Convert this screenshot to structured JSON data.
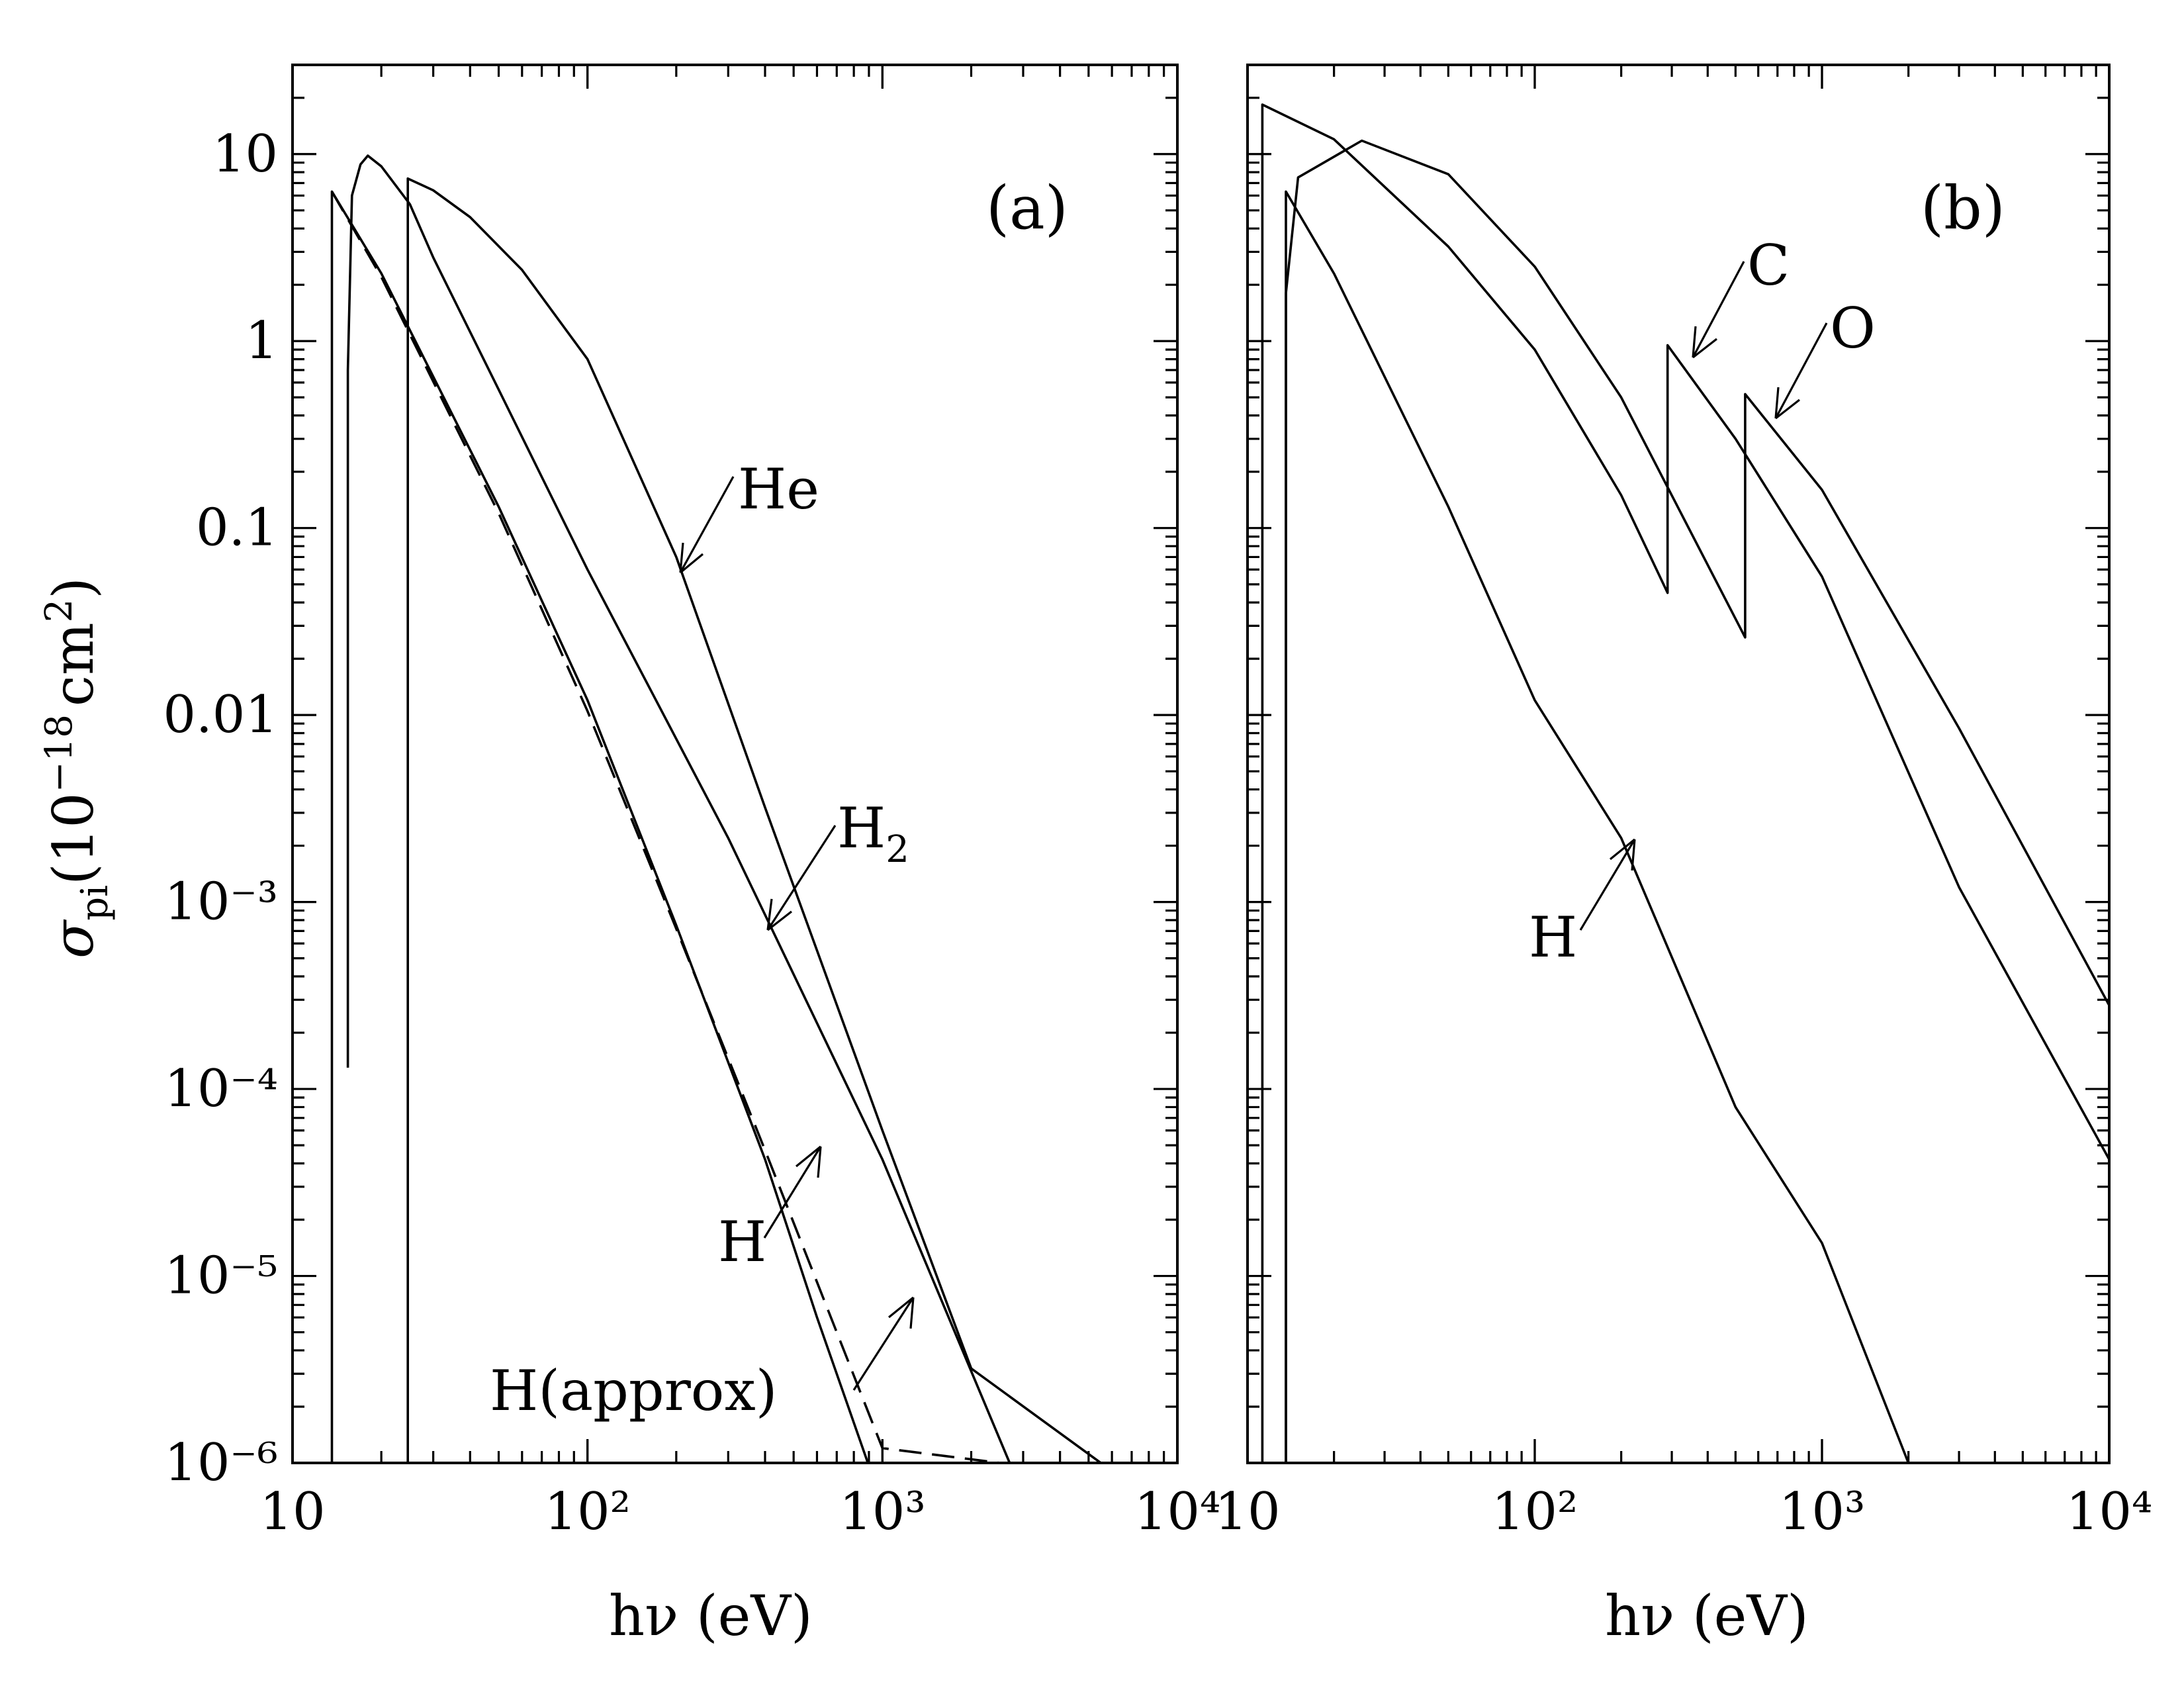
{
  "chart_data": [
    {
      "type": "line",
      "panel": "(a)",
      "xlabel": "hν (eV)",
      "ylabel": "σ_pi (10^-18 cm^2)",
      "xscale": "log",
      "yscale": "log",
      "xlim": [
        10,
        10000
      ],
      "ylim": [
        1e-06,
        30
      ],
      "xticklabels": [
        "10",
        "10²",
        "10³",
        "10⁴"
      ],
      "yticklabels": [
        "10",
        "1",
        "0.1",
        "0.01",
        "10⁻³",
        "10⁻⁴",
        "10⁻⁵",
        "10⁻⁶"
      ],
      "series": [
        {
          "name": "He",
          "style": "solid",
          "x": [
            24.6,
            24.6,
            30,
            40,
            60,
            100,
            200,
            400,
            1000,
            2000,
            5500
          ],
          "y": [
            1e-06,
            7.4,
            6.4,
            4.6,
            2.4,
            0.8,
            0.07,
            0.0032,
            6e-05,
            3.2e-06,
            1e-06
          ]
        },
        {
          "name": "H₂",
          "style": "solid",
          "x": [
            15.4,
            15.4,
            15.9,
            17,
            18,
            20,
            25,
            30,
            50,
            100,
            300,
            1000,
            2700
          ],
          "y": [
            0.00013,
            0.7,
            6.0,
            8.8,
            9.8,
            8.6,
            5.4,
            2.8,
            0.55,
            0.06,
            0.0022,
            4.2e-05,
            1e-06
          ]
        },
        {
          "name": "H",
          "style": "solid",
          "x": [
            13.6,
            13.6,
            20,
            50,
            100,
            200,
            400,
            600,
            1000,
            2300
          ],
          "y": [
            1e-06,
            6.3,
            2.3,
            0.13,
            0.012,
            0.00075,
            4.2e-05,
            6e-06,
            6e-07,
            1e-06
          ]
        },
        {
          "name": "H(approx)",
          "style": "dashed",
          "x": [
            13.6,
            20,
            50,
            100,
            200,
            400,
            1000,
            2500
          ],
          "y": [
            6.3,
            2.2,
            0.12,
            0.0105,
            0.00072,
            4.7e-05,
            1.2e-06,
            1e-06
          ]
        }
      ],
      "annotations": [
        "He",
        "H₂",
        "H",
        "H(approx)"
      ]
    },
    {
      "type": "line",
      "panel": "(b)",
      "xlabel": "hν (eV)",
      "xscale": "log",
      "yscale": "log",
      "xlim": [
        10,
        10000
      ],
      "ylim": [
        1e-06,
        30
      ],
      "xticklabels": [
        "10",
        "10²",
        "10³",
        "10⁴"
      ],
      "series": [
        {
          "name": "C",
          "style": "solid",
          "x": [
            11.26,
            11.26,
            20,
            50,
            100,
            200,
            290,
            290,
            500,
            1000,
            3000,
            10000
          ],
          "y": [
            1e-06,
            18.4,
            12,
            3.2,
            0.9,
            0.15,
            0.045,
            0.95,
            0.3,
            0.055,
            0.0012,
            4.2e-05
          ]
        },
        {
          "name": "O",
          "style": "solid",
          "x": [
            13.6,
            13.6,
            15,
            25,
            50,
            100,
            200,
            540,
            540,
            1000,
            3000,
            10000
          ],
          "y": [
            1e-06,
            1.8,
            7.5,
            11.8,
            7.8,
            2.5,
            0.5,
            0.026,
            0.52,
            0.16,
            0.0085,
            0.00028
          ]
        },
        {
          "name": "H",
          "style": "solid",
          "x": [
            13.6,
            13.6,
            20,
            50,
            100,
            200,
            500,
            1000,
            2000
          ],
          "y": [
            1e-06,
            6.3,
            2.3,
            0.13,
            0.012,
            0.0022,
            8e-05,
            1.5e-05,
            1e-06
          ]
        }
      ],
      "annotations": [
        "C",
        "O",
        "H"
      ]
    }
  ],
  "labels": {
    "panel_a": "(a)",
    "panel_b": "(b)",
    "x_title_a": "hν (eV)",
    "x_title_b": "hν (eV)",
    "y_title_main": "σ",
    "y_title_sub": "pi",
    "y_title_paren": "(10",
    "y_title_exp": "−18",
    "y_title_unit": "cm",
    "y_title_unit_exp": "2",
    "y_title_close": ")",
    "ann_he": "He",
    "ann_h2": "H",
    "ann_h2_sub": "2",
    "ann_h_a": "H",
    "ann_happrox": "H(approx)",
    "ann_c": "C",
    "ann_o": "O",
    "ann_h_b": "H"
  }
}
